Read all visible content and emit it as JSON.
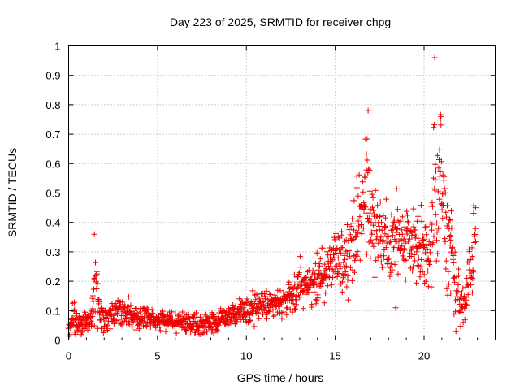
{
  "chart_data": {
    "type": "scatter",
    "title": "Day 223 of 2025, SRMTID for receiver chpg",
    "xlabel": "GPS time / hours",
    "ylabel": "SRMTID / TECUs",
    "xlim": [
      0,
      24
    ],
    "ylim": [
      0,
      1
    ],
    "xticks": [
      0,
      5,
      10,
      15,
      20
    ],
    "yticks": [
      0,
      0.1,
      0.2,
      0.3,
      0.4,
      0.5,
      0.6,
      0.7,
      0.8,
      0.9,
      1
    ],
    "xtick_labels": [
      "0",
      "5",
      "10",
      "15",
      "20"
    ],
    "ytick_labels": [
      "0",
      "0.1",
      "0.2",
      "0.3",
      "0.4",
      "0.5",
      "0.6",
      "0.7",
      "0.8",
      "0.9",
      "1"
    ],
    "grid": true,
    "marker": "+",
    "color": "#ee0000",
    "series": [
      {
        "name": "SRMTID",
        "envelope": {
          "x": [
            0.0,
            0.3,
            0.6,
            1.0,
            1.3,
            1.5,
            1.7,
            2.0,
            2.5,
            3.0,
            3.5,
            4.0,
            5.0,
            6.0,
            7.0,
            7.5,
            8.0,
            9.0,
            10.0,
            10.5,
            11.0,
            12.0,
            12.8,
            13.0,
            13.5,
            14.0,
            14.5,
            15.0,
            15.5,
            16.0,
            16.5,
            16.8,
            17.0,
            17.5,
            18.0,
            18.5,
            19.0,
            19.5,
            20.0,
            20.3,
            20.6,
            20.9,
            21.2,
            21.5,
            21.8,
            22.0,
            22.3,
            22.6,
            22.9
          ],
          "y": [
            0.02,
            0.08,
            0.06,
            0.05,
            0.07,
            0.2,
            0.12,
            0.06,
            0.09,
            0.1,
            0.08,
            0.08,
            0.07,
            0.06,
            0.06,
            0.05,
            0.06,
            0.08,
            0.1,
            0.11,
            0.12,
            0.13,
            0.15,
            0.2,
            0.19,
            0.2,
            0.24,
            0.27,
            0.27,
            0.35,
            0.42,
            0.55,
            0.4,
            0.38,
            0.3,
            0.36,
            0.35,
            0.32,
            0.3,
            0.28,
            0.45,
            0.6,
            0.35,
            0.33,
            0.16,
            0.13,
            0.11,
            0.25,
            0.35
          ],
          "spread": [
            0.02,
            0.05,
            0.04,
            0.03,
            0.04,
            0.12,
            0.06,
            0.03,
            0.05,
            0.05,
            0.04,
            0.03,
            0.03,
            0.03,
            0.03,
            0.03,
            0.03,
            0.03,
            0.04,
            0.05,
            0.04,
            0.04,
            0.06,
            0.06,
            0.06,
            0.07,
            0.08,
            0.08,
            0.1,
            0.12,
            0.15,
            0.22,
            0.14,
            0.12,
            0.12,
            0.12,
            0.12,
            0.12,
            0.12,
            0.12,
            0.3,
            0.2,
            0.15,
            0.12,
            0.12,
            0.08,
            0.06,
            0.12,
            0.12
          ]
        },
        "x_range": [
          0,
          22.9
        ],
        "point_count": 1400,
        "extra_points": [
          {
            "x": 20.6,
            "y": 0.96
          },
          {
            "x": 16.85,
            "y": 0.78
          },
          {
            "x": 20.95,
            "y": 0.76
          },
          {
            "x": 1.45,
            "y": 0.36
          },
          {
            "x": 18.4,
            "y": 0.11
          },
          {
            "x": 21.5,
            "y": 0.16
          },
          {
            "x": 22.9,
            "y": 0.45
          }
        ]
      }
    ]
  }
}
